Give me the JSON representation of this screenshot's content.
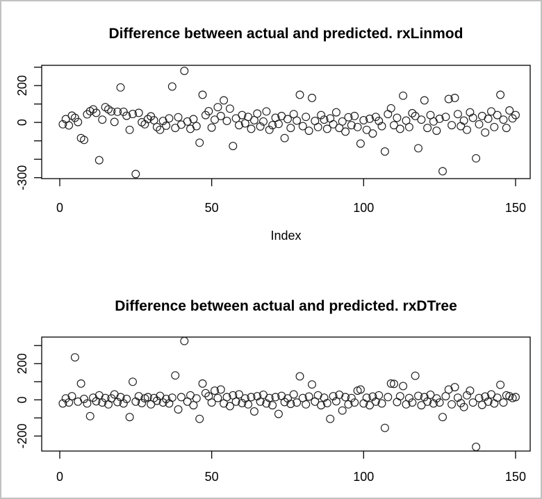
{
  "window": {
    "background": "#ffffff",
    "border_color": "#c1c1c1",
    "axis_color": "#000000",
    "point_color": "#1c1c1c"
  },
  "charts": [
    {
      "chart_data": {
        "type": "scatter",
        "title": "Difference between actual and predicted. rxLinmod",
        "xlabel": "Index",
        "ylabel": "",
        "marker": "open-circle",
        "grid": false,
        "xlim": [
          -6,
          155
        ],
        "ylim": [
          -305,
          310
        ],
        "x_ticks": [
          {
            "value": 0,
            "label": "0"
          },
          {
            "value": 50,
            "label": "50"
          },
          {
            "value": 100,
            "label": "100"
          },
          {
            "value": 150,
            "label": "150"
          }
        ],
        "y_ticks": [
          {
            "value": 300,
            "label": ""
          },
          {
            "value": 200,
            "label": "200"
          },
          {
            "value": 100,
            "label": ""
          },
          {
            "value": 0,
            "label": "0"
          },
          {
            "value": -100,
            "label": ""
          },
          {
            "value": -200,
            "label": ""
          },
          {
            "value": -300,
            "label": "-300"
          }
        ],
        "x_start": 1,
        "x_step": 1,
        "y": [
          -10,
          18,
          -16,
          37,
          25,
          2,
          -85,
          -95,
          44,
          61,
          71,
          52,
          -205,
          15,
          83,
          71,
          60,
          3,
          58,
          190,
          58,
          36,
          -40,
          46,
          -280,
          52,
          1,
          -10,
          18,
          33,
          12,
          -25,
          -40,
          8,
          -18,
          22,
          195,
          -30,
          28,
          -12,
          280,
          5,
          -35,
          18,
          -20,
          -110,
          150,
          40,
          61,
          -28,
          15,
          83,
          35,
          120,
          8,
          75,
          -128,
          22,
          -15,
          40,
          -5,
          30,
          -35,
          12,
          48,
          -22,
          5,
          60,
          -40,
          -15,
          25,
          -8,
          35,
          -85,
          18,
          -30,
          45,
          10,
          150,
          -20,
          30,
          -45,
          133,
          8,
          -25,
          40,
          15,
          -35,
          22,
          -10,
          55,
          -30,
          5,
          -50,
          28,
          -15,
          35,
          -25,
          -115,
          12,
          -40,
          20,
          -60,
          30,
          8,
          -20,
          -158,
          45,
          77,
          -15,
          25,
          -35,
          145,
          10,
          -25,
          50,
          35,
          -140,
          15,
          120,
          -30,
          40,
          5,
          -45,
          20,
          -265,
          30,
          127,
          -15,
          133,
          45,
          -20,
          10,
          -40,
          55,
          25,
          -195,
          -10,
          35,
          -55,
          20,
          60,
          -25,
          40,
          150,
          15,
          -30,
          65,
          22,
          40
        ]
      }
    },
    {
      "chart_data": {
        "type": "scatter",
        "title": "Difference between actual and predicted. rxDTree",
        "xlabel": "",
        "ylabel": "",
        "marker": "open-circle",
        "grid": false,
        "xlim": [
          -6,
          155
        ],
        "ylim": [
          -283,
          347
        ],
        "x_ticks": [
          {
            "value": 0,
            "label": "0"
          },
          {
            "value": 50,
            "label": "50"
          },
          {
            "value": 100,
            "label": "100"
          },
          {
            "value": 150,
            "label": "150"
          }
        ],
        "y_ticks": [
          {
            "value": 300,
            "label": ""
          },
          {
            "value": 200,
            "label": "200"
          },
          {
            "value": 100,
            "label": ""
          },
          {
            "value": 0,
            "label": "0"
          },
          {
            "value": -100,
            "label": ""
          },
          {
            "value": -200,
            "label": "-200"
          }
        ],
        "x_start": 1,
        "x_step": 1,
        "y": [
          -20,
          8,
          -15,
          20,
          235,
          -10,
          90,
          5,
          -20,
          -90,
          12,
          -8,
          25,
          -15,
          10,
          -25,
          8,
          30,
          -12,
          15,
          -20,
          5,
          -95,
          100,
          -10,
          20,
          -18,
          8,
          15,
          -25,
          10,
          -5,
          22,
          -15,
          5,
          -20,
          12,
          135,
          -53,
          15,
          325,
          -10,
          25,
          -30,
          8,
          -105,
          90,
          37,
          20,
          -15,
          51,
          10,
          57,
          -20,
          15,
          -35,
          25,
          -10,
          30,
          -18,
          8,
          -25,
          15,
          -64,
          20,
          -10,
          28,
          -20,
          10,
          -30,
          15,
          -78,
          22,
          -12,
          8,
          -22,
          30,
          -15,
          130,
          10,
          -25,
          18,
          85,
          -10,
          25,
          -30,
          12,
          -18,
          -105,
          20,
          -8,
          28,
          -59,
          15,
          -25,
          10,
          -15,
          51,
          57,
          -20,
          12,
          -30,
          18,
          -10,
          25,
          -20,
          -155,
          15,
          90,
          88,
          -12,
          20,
          76,
          -25,
          10,
          -15,
          133,
          22,
          -30,
          15,
          -10,
          28,
          -20,
          8,
          -15,
          -95,
          20,
          57,
          -25,
          70,
          12,
          -18,
          -40,
          25,
          51,
          -15,
          -260,
          10,
          -28,
          18,
          -10,
          30,
          -20,
          12,
          83,
          -15,
          25,
          20,
          10,
          15
        ]
      }
    }
  ]
}
